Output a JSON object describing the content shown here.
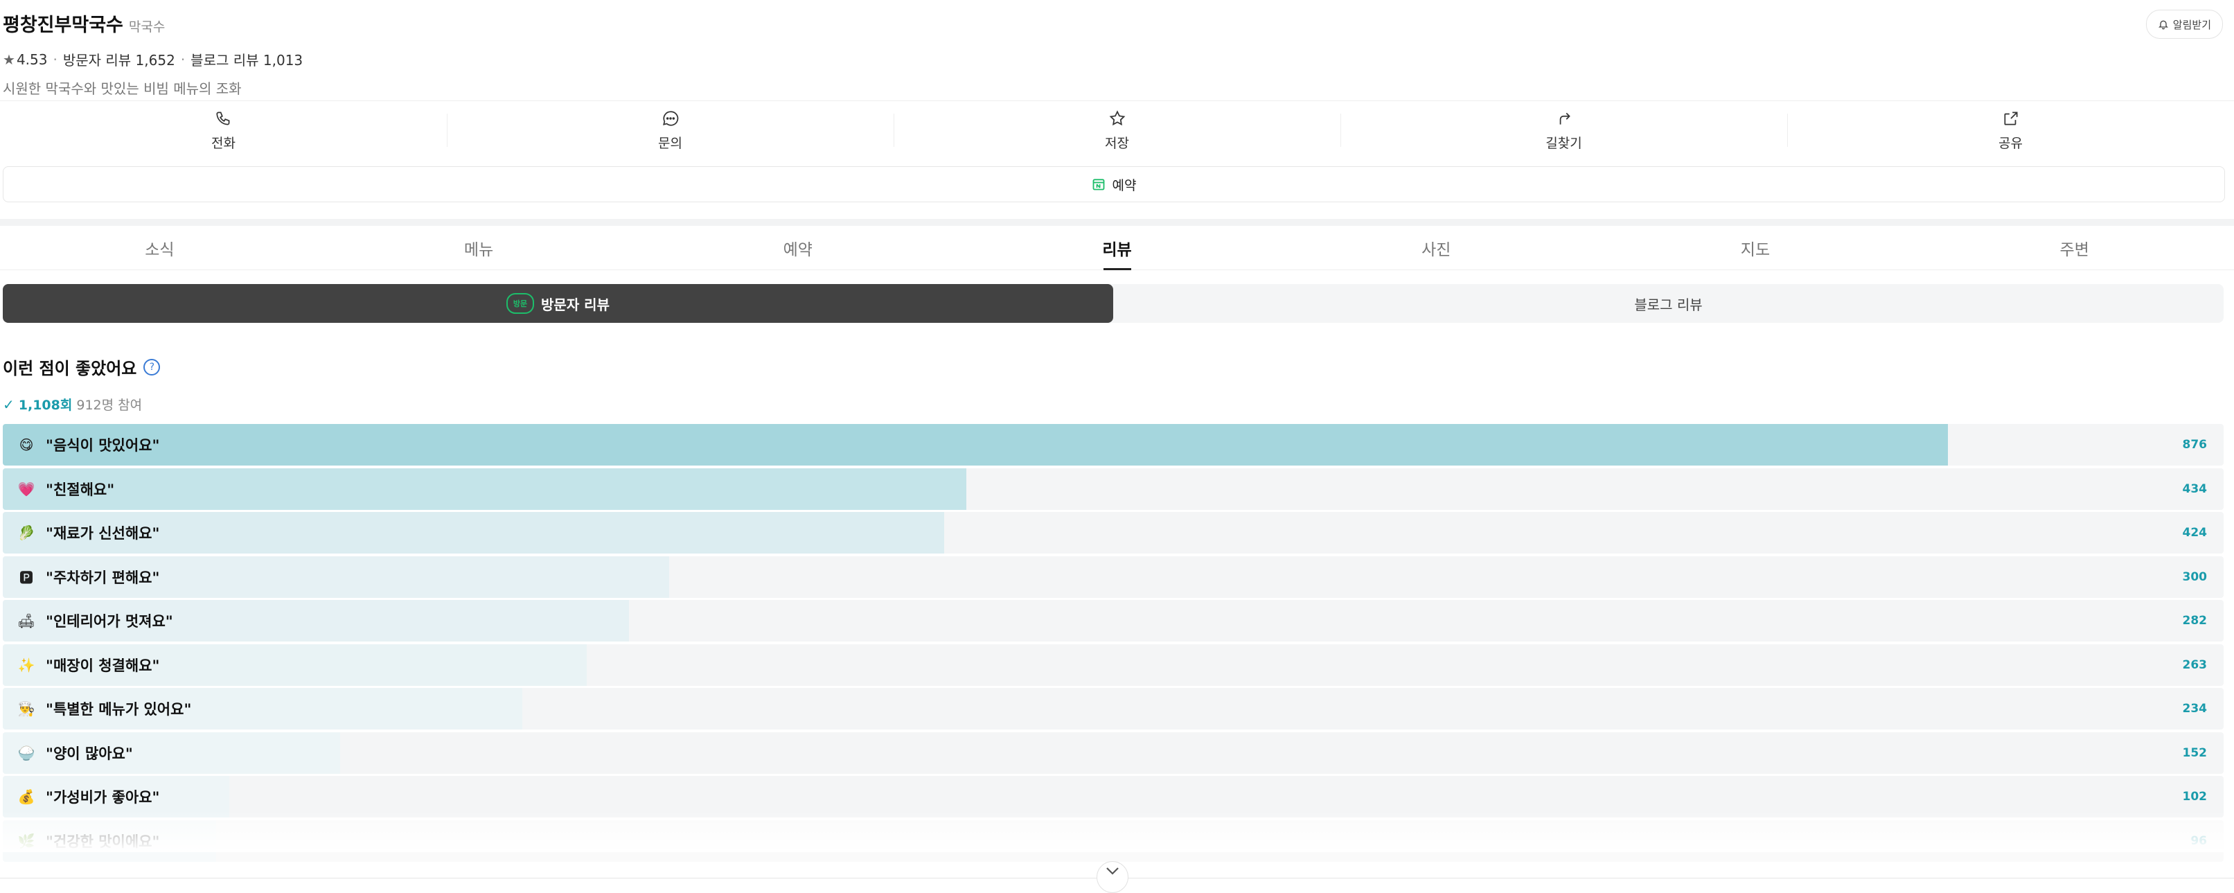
{
  "place": {
    "name": "평창진부막국수",
    "category": "막국수",
    "rating": "4.53",
    "visitor_reviews": "방문자 리뷰 1,652",
    "blog_reviews": "블로그 리뷰 1,013",
    "description": "시원한 막국수와 맛있는 비빔 메뉴의 조화",
    "alarm_label": "알림받기"
  },
  "actions": [
    {
      "label": "전화",
      "icon": "phone-icon"
    },
    {
      "label": "문의",
      "icon": "chat-icon"
    },
    {
      "label": "저장",
      "icon": "star-icon"
    },
    {
      "label": "길찾기",
      "icon": "directions-icon"
    },
    {
      "label": "공유",
      "icon": "share-icon"
    }
  ],
  "reserve": {
    "label": "예약",
    "icon": "calendar-icon"
  },
  "tabs": [
    {
      "label": "소식",
      "active": false
    },
    {
      "label": "메뉴",
      "active": false
    },
    {
      "label": "예약",
      "active": false
    },
    {
      "label": "리뷰",
      "active": true
    },
    {
      "label": "사진",
      "active": false
    },
    {
      "label": "지도",
      "active": false
    },
    {
      "label": "주변",
      "active": false
    }
  ],
  "segments": {
    "visitor": "방문자 리뷰",
    "visitor_badge": "방문",
    "blog": "블로그 리뷰"
  },
  "keywords": {
    "title": "이런 점이 좋았어요",
    "count": "1,108회",
    "participants": "912명 참여",
    "max": 1000,
    "items": [
      {
        "label": "\"음식이 맛있어요\"",
        "count": 876,
        "emoji": "😋",
        "color": "#a5d6dd"
      },
      {
        "label": "\"친절해요\"",
        "count": 434,
        "emoji": "💗",
        "color": "#c4e4e9"
      },
      {
        "label": "\"재료가 신선해요\"",
        "count": 424,
        "emoji": "🥬",
        "color": "#dcedf1"
      },
      {
        "label": "\"주차하기 편해요\"",
        "count": 300,
        "emoji": "🅿",
        "color": "#e6f1f4"
      },
      {
        "label": "\"인테리어가 멋져요\"",
        "count": 282,
        "emoji": "🛋",
        "color": "#e6f1f4"
      },
      {
        "label": "\"매장이 청결해요\"",
        "count": 263,
        "emoji": "✨",
        "color": "#e9f3f5"
      },
      {
        "label": "\"특별한 메뉴가 있어요\"",
        "count": 234,
        "emoji": "👨‍🍳",
        "color": "#ebf4f6"
      },
      {
        "label": "\"양이 많아요\"",
        "count": 152,
        "emoji": "🍚",
        "color": "#edf5f7"
      },
      {
        "label": "\"가성비가 좋아요\"",
        "count": 102,
        "emoji": "💰",
        "color": "#eef5f7"
      },
      {
        "label": "\"건강한 맛이에요\"",
        "count": 96,
        "emoji": "🌿",
        "color": "#eff6f8"
      }
    ]
  }
}
